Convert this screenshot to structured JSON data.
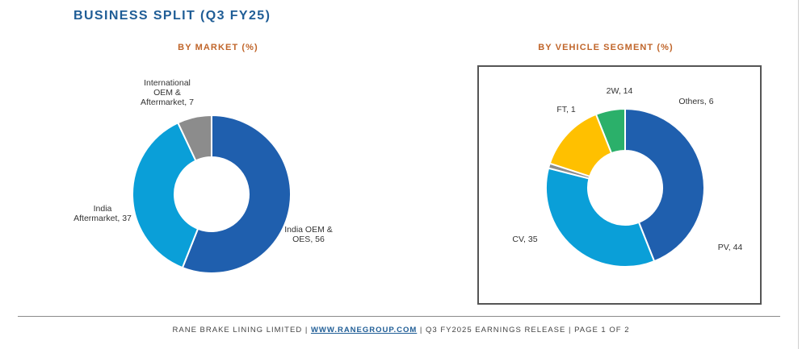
{
  "page_title": "BUSINESS SPLIT (Q3 FY25)",
  "chart_data": [
    {
      "type": "pie",
      "title": "BY MARKET (%)",
      "donut": true,
      "slices": [
        {
          "label_lines": [
            "India OEM &",
            "OES, 56"
          ],
          "value": 56,
          "color": "#1f5fae"
        },
        {
          "label_lines": [
            "India",
            "Aftermarket, 37"
          ],
          "value": 37,
          "color": "#0a9fd8"
        },
        {
          "label_lines": [
            "International",
            "OEM &",
            "Aftermarket, 7"
          ],
          "value": 7,
          "color": "#8c8c8c"
        }
      ]
    },
    {
      "type": "pie",
      "title": "BY VEHICLE SEGMENT (%)",
      "donut": true,
      "slices": [
        {
          "label_lines": [
            "Others,  6"
          ],
          "value": 6,
          "color": "#2bb06a"
        },
        {
          "label_lines": [
            "PV,  44"
          ],
          "value": 44,
          "color": "#1f5fae"
        },
        {
          "label_lines": [
            "CV,  35"
          ],
          "value": 35,
          "color": "#0a9fd8"
        },
        {
          "label_lines": [
            "FT,  1"
          ],
          "value": 1,
          "color": "#8c8c8c"
        },
        {
          "label_lines": [
            "2W,  14"
          ],
          "value": 14,
          "color": "#ffc000"
        }
      ]
    }
  ],
  "footer": {
    "company": "RANE BRAKE LINING LIMITED  |  ",
    "link": "WWW.RANEGROUP.COM",
    "rest": "  |  Q3 FY2025 EARNINGS RELEASE  |  PAGE 1 OF 2"
  }
}
